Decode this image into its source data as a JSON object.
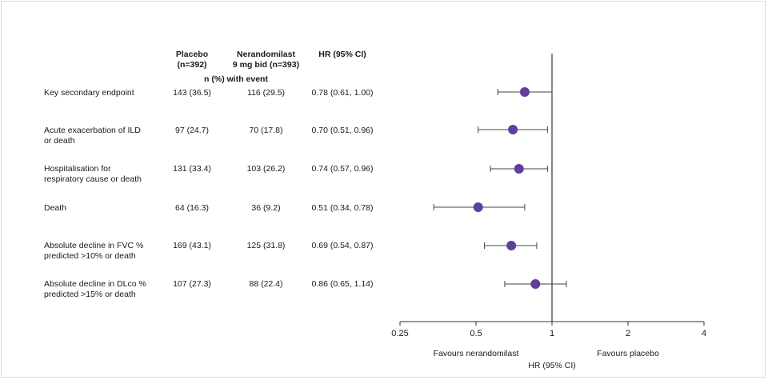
{
  "headers": {
    "placebo": "Placebo\n(n=392)",
    "nerandomilast": "Nerandomilast\n9 mg bid (n=393)",
    "hr": "HR (95% CI)",
    "event": "n (%)  with event"
  },
  "rows": [
    {
      "label": "Key secondary endpoint",
      "placebo": "143 (36.5)",
      "nerandomilast": "116 (29.5)",
      "hr_text": "0.78 (0.61, 1.00)"
    },
    {
      "label": "Acute exacerbation of ILD\nor death",
      "placebo": "97 (24.7)",
      "nerandomilast": "70 (17.8)",
      "hr_text": "0.70 (0.51, 0.96)"
    },
    {
      "label": "Hospitalisation for\nrespiratory cause or death",
      "placebo": "131 (33.4)",
      "nerandomilast": "103 (26.2)",
      "hr_text": "0.74 (0.57, 0.96)"
    },
    {
      "label": "Death",
      "placebo": "64 (16.3)",
      "nerandomilast": "36 (9.2)",
      "hr_text": "0.51 (0.34, 0.78)"
    },
    {
      "label": "Absolute decline in FVC %\npredicted >10% or death",
      "placebo": "169 (43.1)",
      "nerandomilast": "125 (31.8)",
      "hr_text": "0.69 (0.54, 0.87)"
    },
    {
      "label": "Absolute decline in DLco %\npredicted >15% or death",
      "placebo": "107 (27.3)",
      "nerandomilast": "88 (22.4)",
      "hr_text": "0.86 (0.65, 1.14)"
    }
  ],
  "chart_data": {
    "type": "scatter",
    "xscale": "log",
    "xlim": [
      0.25,
      4
    ],
    "reference_line": 1,
    "xticks": [
      0.25,
      0.5,
      1,
      2,
      4
    ],
    "xtick_labels": [
      "0.25",
      "0.5",
      "1",
      "2",
      "4"
    ],
    "xlabel": "HR (95% CI)",
    "left_annotation": "Favours nerandomilast",
    "right_annotation": "Favours placebo",
    "point_color": "#5e3f9b",
    "points": [
      {
        "hr": 0.78,
        "lo": 0.61,
        "hi": 1.0
      },
      {
        "hr": 0.7,
        "lo": 0.51,
        "hi": 0.96
      },
      {
        "hr": 0.74,
        "lo": 0.57,
        "hi": 0.96
      },
      {
        "hr": 0.51,
        "lo": 0.34,
        "hi": 0.78
      },
      {
        "hr": 0.69,
        "lo": 0.54,
        "hi": 0.87
      },
      {
        "hr": 0.86,
        "lo": 0.65,
        "hi": 1.14
      }
    ]
  }
}
